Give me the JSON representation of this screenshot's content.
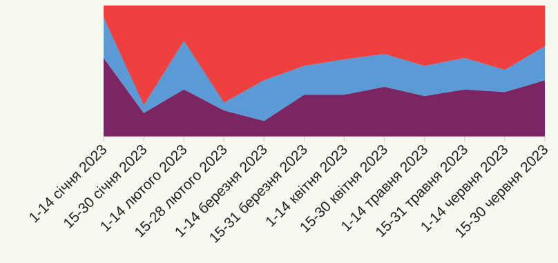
{
  "chart_data": {
    "type": "area",
    "stacked": true,
    "normalized": true,
    "categories": [
      "1-14 січня 2023",
      "15-30 січня 2023",
      "1-14 лютого 2023",
      "15-28 лютого 2023",
      "1-14 березня 2023",
      "15-31 березня 2023",
      "1-14 квітня 2023",
      "15-30 квітня 2023",
      "1-14 травня 2023",
      "15-31 травня 2023",
      "1-14 червня 2023",
      "15-30 червня 2023"
    ],
    "series": [
      {
        "color": "#7b2563",
        "values": [
          0.6,
          0.18,
          0.36,
          0.2,
          0.12,
          0.32,
          0.32,
          0.38,
          0.31,
          0.36,
          0.34,
          0.43
        ]
      },
      {
        "color": "#5b9bd5",
        "values": [
          0.31,
          0.06,
          0.37,
          0.06,
          0.31,
          0.22,
          0.27,
          0.25,
          0.23,
          0.24,
          0.17,
          0.26
        ]
      },
      {
        "color": "#ef4040",
        "values": [
          0.09,
          0.76,
          0.27,
          0.74,
          0.57,
          0.46,
          0.41,
          0.37,
          0.46,
          0.4,
          0.49,
          0.31
        ]
      }
    ],
    "ylim": [
      0,
      1
    ],
    "grid": false,
    "legend": "none",
    "title": "",
    "xlabel": "",
    "ylabel": ""
  }
}
